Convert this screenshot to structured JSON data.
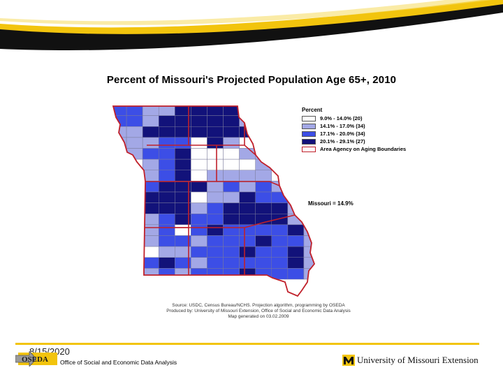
{
  "slide": {
    "title": "Percent of Missouri's Projected Population Age 65+, 2010",
    "date": "8/15/2020",
    "footer_office": "Office of Social and Economic Data Analysis",
    "footer_university": "University of Missouri Extension",
    "logo_text": "OSEDA"
  },
  "legend": {
    "title": "Percent",
    "items": [
      {
        "label": "9.0% - 14.0% (20)",
        "color": "#ffffff"
      },
      {
        "label": "14.1% - 17.0% (34)",
        "color": "#a3a8e6"
      },
      {
        "label": "17.1% - 20.0% (34)",
        "color": "#3c4ee6"
      },
      {
        "label": "20.1% - 29.1% (27)",
        "color": "#12127a"
      }
    ],
    "boundary_label": "Area Agency on Aging Boundaries",
    "boundary_color": "#c0202a"
  },
  "state_average": "Missouri = 14.9%",
  "source_lines": [
    "Source: USDC, Census Bureau/NCHS. Projection algorithm, programming by OSEDA",
    "Produced by: University of Missouri Extension, Office of Social and Economic Data Analysis",
    "Map generated on 03.02.2009"
  ],
  "colors": {
    "accent_yellow": "#f2c40d",
    "swoosh_dark": "#1a1a1a"
  }
}
